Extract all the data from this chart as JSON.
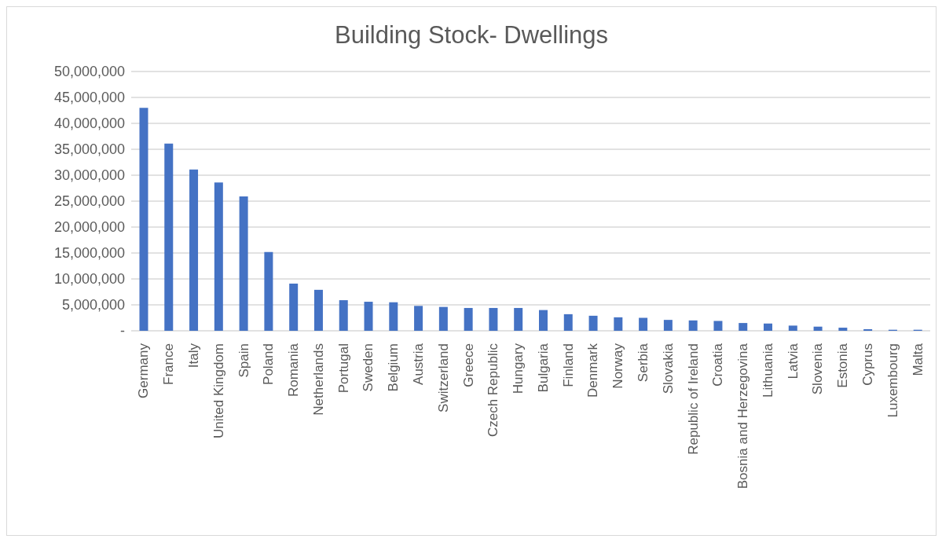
{
  "chart_data": {
    "type": "bar",
    "title": "Building Stock- Dwellings",
    "categories": [
      "Germany",
      "France",
      "Italy",
      "United Kingdom",
      "Spain",
      "Poland",
      "Romania",
      "Netherlands",
      "Portugal",
      "Sweden",
      "Belgium",
      "Austria",
      "Switzerland",
      "Greece",
      "Czech Republic",
      "Hungary",
      "Bulgaria",
      "Finland",
      "Denmark",
      "Norway",
      "Serbia",
      "Slovakia",
      "Republic of Ireland",
      "Croatia",
      "Bosnia and Herzegovina",
      "Lithuania",
      "Latvia",
      "Slovenia",
      "Estonia",
      "Cyprus",
      "Luxembourg",
      "Malta"
    ],
    "values": [
      43000000,
      36100000,
      31100000,
      28600000,
      25900000,
      15200000,
      9100000,
      7900000,
      5900000,
      5600000,
      5500000,
      4800000,
      4600000,
      4400000,
      4400000,
      4400000,
      4000000,
      3200000,
      2900000,
      2600000,
      2500000,
      2100000,
      2000000,
      1900000,
      1500000,
      1400000,
      1000000,
      800000,
      600000,
      300000,
      200000,
      200000
    ],
    "color": "#4472c4",
    "ylim": [
      0,
      50000000
    ],
    "yticks": [
      {
        "value": 0,
        "label": "-"
      },
      {
        "value": 5000000,
        "label": "5,000,000"
      },
      {
        "value": 10000000,
        "label": "10,000,000"
      },
      {
        "value": 15000000,
        "label": "15,000,000"
      },
      {
        "value": 20000000,
        "label": "20,000,000"
      },
      {
        "value": 25000000,
        "label": "25,000,000"
      },
      {
        "value": 30000000,
        "label": "30,000,000"
      },
      {
        "value": 35000000,
        "label": "35,000,000"
      },
      {
        "value": 40000000,
        "label": "40,000,000"
      },
      {
        "value": 45000000,
        "label": "45,000,000"
      },
      {
        "value": 50000000,
        "label": "50,000,000"
      }
    ],
    "grid": "y"
  }
}
